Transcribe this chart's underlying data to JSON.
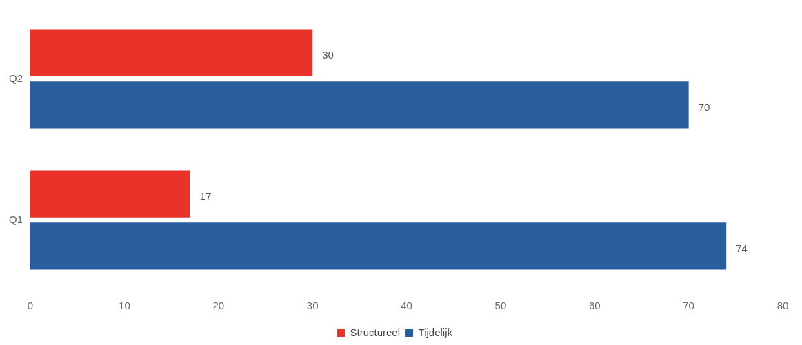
{
  "chart_data": {
    "type": "bar",
    "orientation": "horizontal",
    "categories": [
      "Q2",
      "Q1"
    ],
    "series": [
      {
        "name": "Structureel",
        "color": "#e8322a",
        "values": [
          30,
          17
        ]
      },
      {
        "name": "Tijdelijk",
        "color": "#2a5d9e",
        "values": [
          70,
          74
        ]
      }
    ],
    "xlim": [
      0,
      80
    ],
    "xticks": [
      0,
      10,
      20,
      30,
      40,
      50,
      60,
      70,
      80
    ],
    "grid": false,
    "legend": "bottom",
    "data_labels": true
  }
}
